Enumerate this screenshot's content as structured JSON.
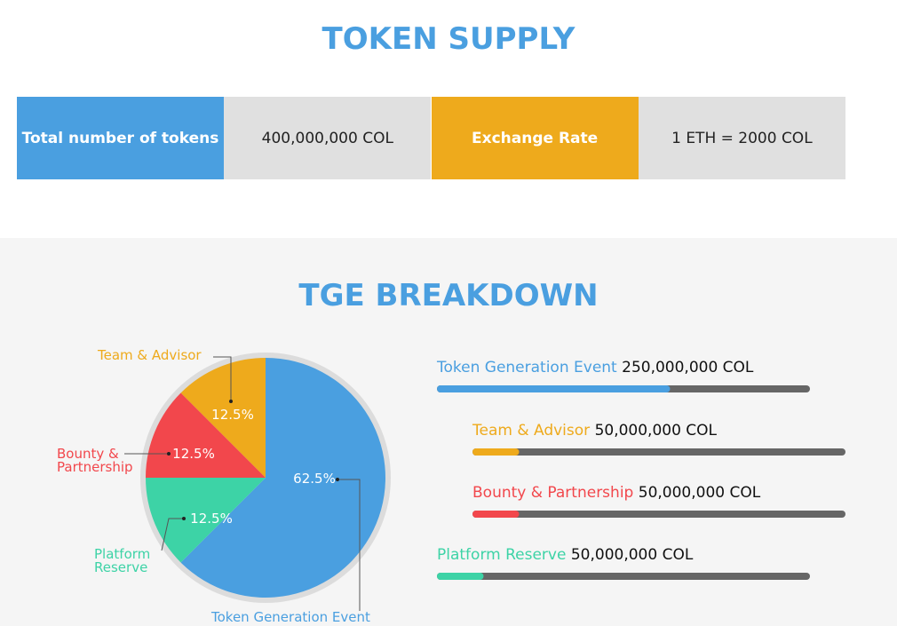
{
  "supply": {
    "title": "TOKEN SUPPLY",
    "cells": [
      "Total number of tokens",
      "400,000,000 COL",
      "Exchange Rate",
      "1 ETH = 2000 COL"
    ]
  },
  "chart_data": {
    "type": "pie",
    "title": "TGE BREAKDOWN",
    "categories": [
      "Token Generation Event",
      "Team & Advisor",
      "Bounty & Partnership",
      "Platform Reserve"
    ],
    "values": [
      62.5,
      12.5,
      12.5,
      12.5
    ],
    "value_labels": [
      "62.5%",
      "12.5%",
      "12.5%",
      "12.5%"
    ],
    "colors": [
      "#4a9fe0",
      "#eeaa1c",
      "#f2474c",
      "#3dd3a6"
    ],
    "amounts": [
      "250,000,000 COL",
      "50,000,000 COL",
      "50,000,000 COL",
      "50,000,000 COL"
    ]
  }
}
